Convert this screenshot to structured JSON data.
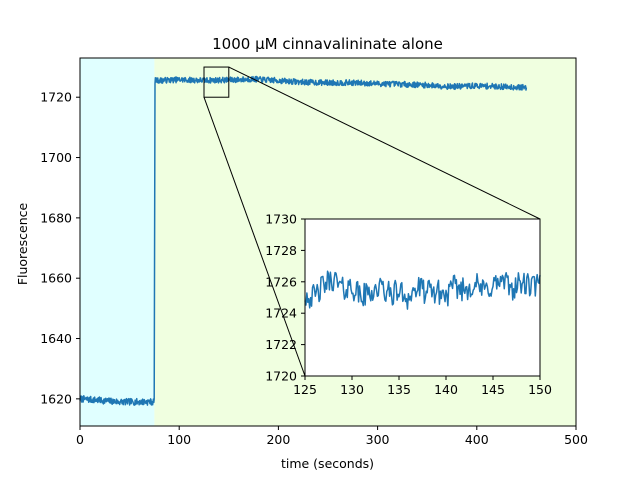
{
  "chart_data": {
    "type": "line",
    "title": "1000 µM cinnavalininate alone",
    "xlabel": "time (seconds)",
    "ylabel": "Fluorescence",
    "xlim": [
      0,
      500
    ],
    "ylim": [
      1611,
      1733
    ],
    "xticks": [
      0,
      100,
      200,
      300,
      400,
      500
    ],
    "yticks": [
      1620,
      1640,
      1660,
      1680,
      1700,
      1720
    ],
    "grid": false,
    "background_regions": [
      {
        "x0": 0,
        "x1": 75,
        "color": "#e0ffff"
      },
      {
        "x0": 75,
        "x1": 500,
        "color": "#f0ffe0"
      }
    ],
    "series": [
      {
        "color": "#1f77b4",
        "x_start": 0,
        "x_end": 450,
        "points": [
          [
            0,
            1620
          ],
          [
            20,
            1619.5
          ],
          [
            40,
            1619
          ],
          [
            60,
            1619
          ],
          [
            74,
            1619
          ],
          [
            75,
            1619
          ],
          [
            75.5,
            1725.5
          ],
          [
            100,
            1725.8
          ],
          [
            125,
            1725.6
          ],
          [
            150,
            1725.7
          ],
          [
            175,
            1726
          ],
          [
            200,
            1725.5
          ],
          [
            225,
            1725
          ],
          [
            250,
            1724.8
          ],
          [
            275,
            1724.8
          ],
          [
            300,
            1724.5
          ],
          [
            325,
            1724.3
          ],
          [
            350,
            1724
          ],
          [
            375,
            1723.5
          ],
          [
            400,
            1723.8
          ],
          [
            425,
            1723.5
          ],
          [
            450,
            1723.2
          ]
        ]
      }
    ],
    "inset": {
      "xlim": [
        125,
        150
      ],
      "ylim": [
        1720,
        1730
      ],
      "xticks": [
        125,
        130,
        135,
        140,
        145,
        150
      ],
      "yticks": [
        1720,
        1722,
        1724,
        1726,
        1728,
        1730
      ],
      "series_points": [
        [
          125,
          1725.2
        ],
        [
          126,
          1725.0
        ],
        [
          127,
          1725.8
        ],
        [
          128,
          1726.2
        ],
        [
          129,
          1725.5
        ],
        [
          130,
          1725.7
        ],
        [
          131,
          1725.0
        ],
        [
          132,
          1725.4
        ],
        [
          133,
          1725.6
        ],
        [
          134,
          1725.2
        ],
        [
          135,
          1725.4
        ],
        [
          136,
          1725.0
        ],
        [
          137,
          1725.6
        ],
        [
          138,
          1725.3
        ],
        [
          139,
          1725.4
        ],
        [
          140,
          1725.1
        ],
        [
          141,
          1725.7
        ],
        [
          142,
          1725.5
        ],
        [
          143,
          1725.9
        ],
        [
          144,
          1725.4
        ],
        [
          145,
          1725.8
        ],
        [
          146,
          1726.0
        ],
        [
          147,
          1725.6
        ],
        [
          148,
          1725.9
        ],
        [
          149,
          1725.7
        ],
        [
          150,
          1725.8
        ]
      ]
    }
  }
}
